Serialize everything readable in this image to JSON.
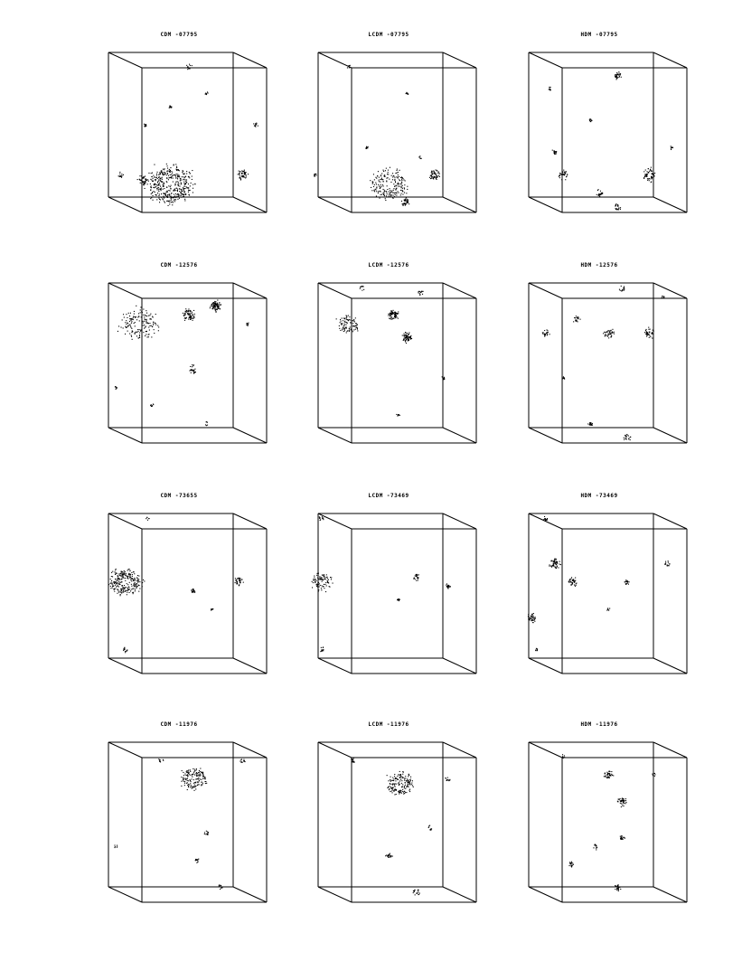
{
  "figure": {
    "panels": [
      {
        "title": "CDM -07795",
        "model": "CDM",
        "id": "07795"
      },
      {
        "title": "LCDM -07795",
        "model": "LCDM",
        "id": "07795"
      },
      {
        "title": "HDM -07795",
        "model": "HDM",
        "id": "07795"
      },
      {
        "title": "CDM -12576",
        "model": "CDM",
        "id": "12576"
      },
      {
        "title": "LCDM -12576",
        "model": "LCDM",
        "id": "12576"
      },
      {
        "title": "HDM -12576",
        "model": "HDM",
        "id": "12576"
      },
      {
        "title": "CDM -73655",
        "model": "CDM",
        "id": "73655"
      },
      {
        "title": "LCDM -73469",
        "model": "LCDM",
        "id": "73469"
      },
      {
        "title": "HDM -73469",
        "model": "HDM",
        "id": "73469"
      },
      {
        "title": "CDM -11976",
        "model": "CDM",
        "id": "11976"
      },
      {
        "title": "LCDM -11976",
        "model": "LCDM",
        "id": "11976"
      },
      {
        "title": "HDM -11976",
        "model": "HDM",
        "id": "11976"
      }
    ]
  }
}
